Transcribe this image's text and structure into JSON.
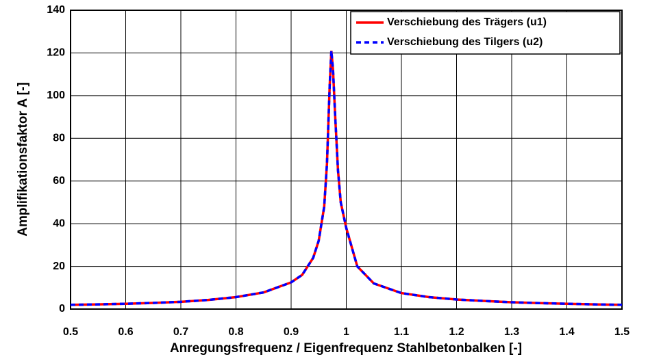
{
  "chart_data": {
    "type": "line",
    "x_label": "Anregungsfrequenz / Eigenfrequenz Stahlbetonbalken [-]",
    "y_label": "Amplifikationsfaktor A [-]",
    "x": [
      0.5,
      0.55,
      0.6,
      0.65,
      0.7,
      0.75,
      0.8,
      0.85,
      0.9,
      0.92,
      0.94,
      0.95,
      0.96,
      0.965,
      0.97,
      0.973,
      0.976,
      0.98,
      0.985,
      0.99,
      1.0,
      1.02,
      1.05,
      1.1,
      1.15,
      1.2,
      1.25,
      1.3,
      1.35,
      1.4,
      1.45,
      1.5
    ],
    "series": [
      {
        "name": "Verschiebung des Trägers (u1)",
        "color": "#ff0000",
        "dash": false,
        "values": [
          2.0,
          2.2,
          2.5,
          2.9,
          3.4,
          4.3,
          5.6,
          7.8,
          12.5,
          16,
          24,
          32,
          48,
          68,
          105,
          121,
          112,
          90,
          65,
          50,
          38,
          20,
          12,
          7.5,
          5.6,
          4.5,
          3.8,
          3.2,
          2.8,
          2.5,
          2.2,
          2.0
        ]
      },
      {
        "name": "Verschiebung des Tilgers (u2)",
        "color": "#0000ff",
        "dash": true,
        "values": [
          2.0,
          2.2,
          2.5,
          2.9,
          3.4,
          4.3,
          5.6,
          7.8,
          12.5,
          16,
          24,
          32,
          48,
          68,
          105,
          121,
          112,
          90,
          65,
          50,
          38,
          20,
          12,
          7.5,
          5.6,
          4.5,
          3.8,
          3.2,
          2.8,
          2.5,
          2.2,
          2.0
        ]
      }
    ],
    "xlim": [
      0.5,
      1.5
    ],
    "xticks": [
      0.5,
      0.6,
      0.7,
      0.8,
      0.9,
      1,
      1.1,
      1.2,
      1.3,
      1.4,
      1.5
    ],
    "ylim": [
      0,
      140
    ],
    "yticks": [
      0,
      20,
      40,
      60,
      80,
      100,
      120,
      140
    ],
    "grid": true,
    "legend": "top-right"
  }
}
